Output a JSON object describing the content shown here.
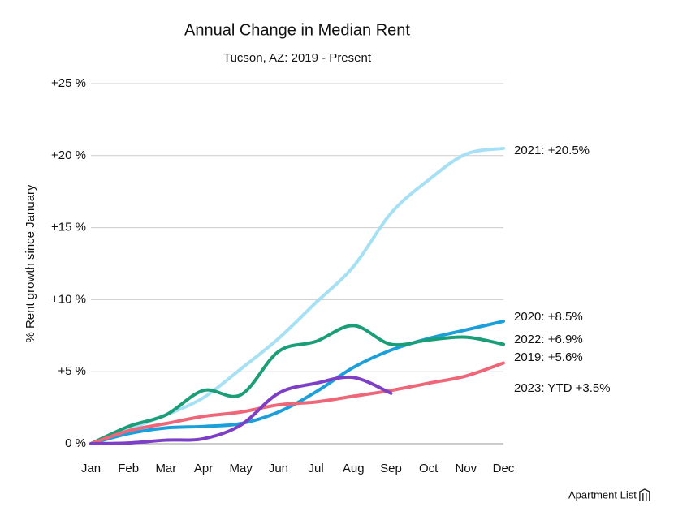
{
  "chart_data": {
    "type": "line",
    "title": "Annual Change in Median Rent",
    "subtitle": "Tucson, AZ: 2019 - Present",
    "y_label": "% Rent growth since January",
    "brand": "Apartment List",
    "categories": [
      "Jan",
      "Feb",
      "Mar",
      "Apr",
      "May",
      "Jun",
      "Jul",
      "Aug",
      "Sep",
      "Oct",
      "Nov",
      "Dec"
    ],
    "ylim": [
      0,
      25
    ],
    "yticks": [
      {
        "value": 0,
        "label": "0 %"
      },
      {
        "value": 5,
        "label": "+5 %"
      },
      {
        "value": 10,
        "label": "+10 %"
      },
      {
        "value": 15,
        "label": "+15 %"
      },
      {
        "value": 20,
        "label": "+20 %"
      },
      {
        "value": 25,
        "label": "+25 %"
      }
    ],
    "grid": true,
    "series": [
      {
        "label": "2021: +20.5%",
        "color": "#a6e0f5",
        "values": [
          0,
          1.0,
          2.0,
          3.2,
          5.2,
          7.3,
          9.8,
          12.3,
          16.0,
          18.3,
          20.1,
          20.5
        ]
      },
      {
        "label": "2020: +8.5%",
        "color": "#1a9fdb",
        "values": [
          0,
          0.7,
          1.1,
          1.2,
          1.4,
          2.2,
          3.6,
          5.3,
          6.5,
          7.3,
          7.9,
          8.5
        ]
      },
      {
        "label": "2022: +6.9%",
        "color": "#1a9e77",
        "values": [
          0,
          1.2,
          2.0,
          3.7,
          3.4,
          6.4,
          7.1,
          8.2,
          6.9,
          7.2,
          7.4,
          6.9
        ]
      },
      {
        "label": "2019: +5.6%",
        "color": "#ee6677",
        "values": [
          0,
          0.9,
          1.4,
          1.9,
          2.2,
          2.7,
          2.9,
          3.3,
          3.7,
          4.2,
          4.7,
          5.6
        ]
      },
      {
        "label": "2023: YTD +3.5%",
        "color": "#7e3fc7",
        "values": [
          0,
          0.05,
          0.25,
          0.35,
          1.3,
          3.5,
          4.2,
          4.6,
          3.5,
          null,
          null,
          null
        ]
      }
    ]
  }
}
